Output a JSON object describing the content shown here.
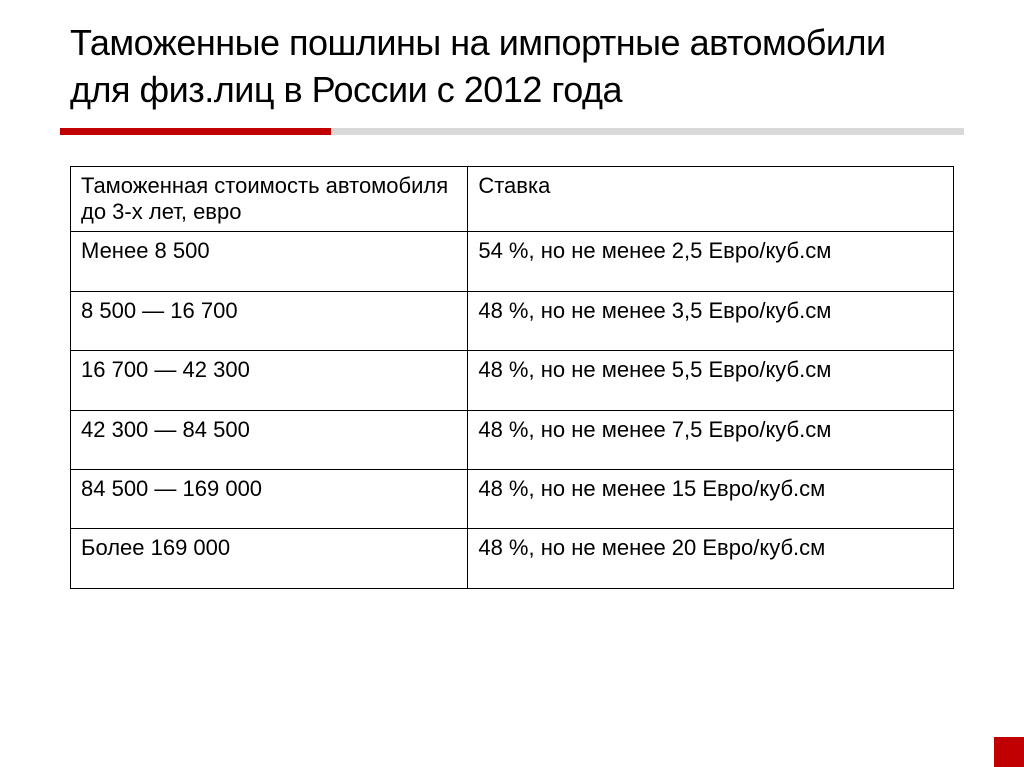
{
  "slide": {
    "title": "Таможенные пошлины на импортные автомобили для физ.лиц в России с 2012 года",
    "background_color": "#ffffff",
    "accent_color": "#c00000",
    "divider_gray": "#d9d9d9",
    "text_color": "#000000",
    "title_fontsize": 36,
    "body_fontsize": 22
  },
  "table": {
    "type": "table",
    "columns": [
      {
        "header": "Таможенная стоимость автомобиля до 3-х лет, евро",
        "width": "45%",
        "align": "left"
      },
      {
        "header": "Ставка",
        "width": "55%",
        "align": "left"
      }
    ],
    "rows": [
      [
        "Менее 8 500",
        "54 %, но не менее 2,5 Евро/куб.см"
      ],
      [
        "8 500 — 16 700",
        "48 %, но не менее 3,5 Евро/куб.см"
      ],
      [
        "16 700 — 42 300",
        "48 %, но не менее 5,5 Евро/куб.см"
      ],
      [
        "42 300 — 84 500",
        "48 %, но не менее 7,5 Евро/куб.см"
      ],
      [
        "84 500 — 169 000",
        "48 %, но не менее 15 Евро/куб.см"
      ],
      [
        "Более 169 000",
        "48 %, но не менее 20 Евро/куб.см"
      ]
    ],
    "border_color": "#000000"
  }
}
